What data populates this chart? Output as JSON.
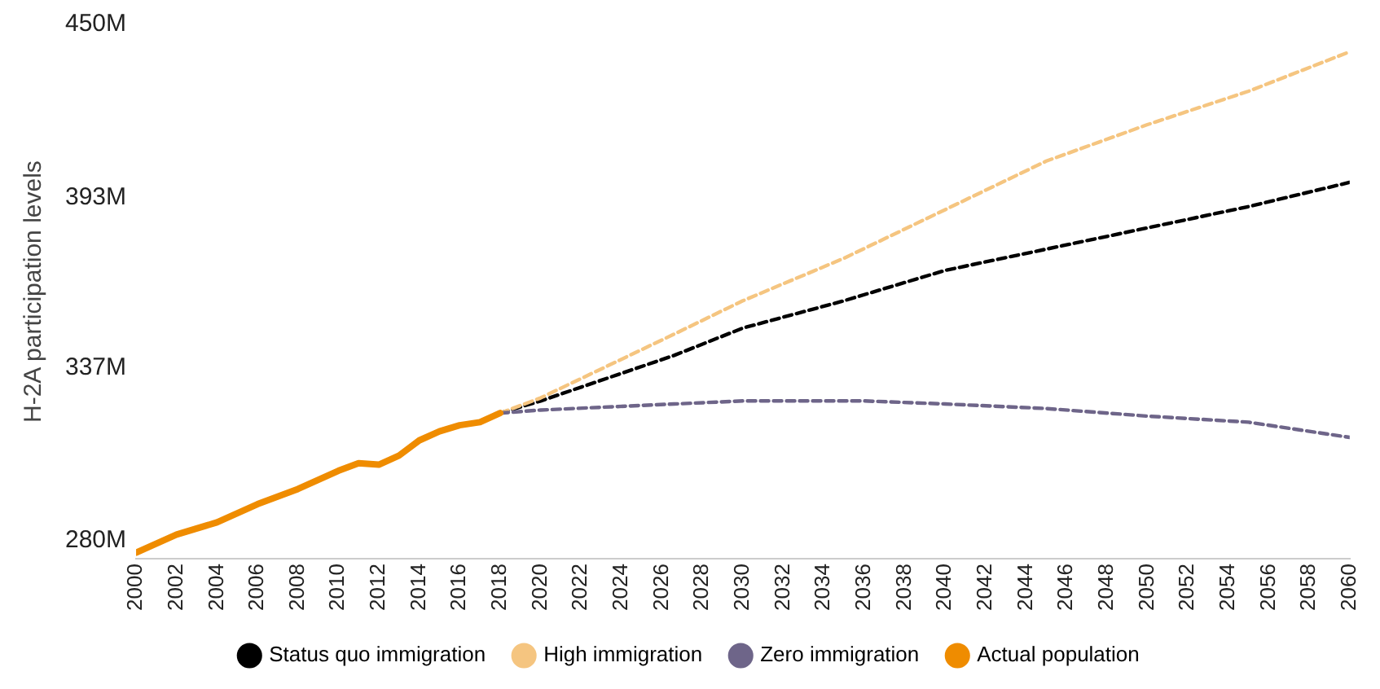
{
  "chart_data": {
    "type": "line",
    "ylabel": "H-2A participation levels",
    "xlim": [
      2000,
      2060
    ],
    "xticks": [
      2000,
      2002,
      2004,
      2006,
      2008,
      2010,
      2012,
      2014,
      2016,
      2018,
      2020,
      2022,
      2024,
      2026,
      2028,
      2030,
      2032,
      2034,
      2036,
      2038,
      2040,
      2042,
      2044,
      2046,
      2048,
      2050,
      2052,
      2054,
      2056,
      2058,
      2060
    ],
    "ylim": [
      274,
      450
    ],
    "yticks": [
      {
        "value": 280,
        "label": "280M"
      },
      {
        "value": 337,
        "label": "337M"
      },
      {
        "value": 393,
        "label": "393M"
      },
      {
        "value": 450,
        "label": "450M"
      }
    ],
    "grid": false,
    "legend": "bottom",
    "marker": "none",
    "series": [
      {
        "name": "Status quo immigration",
        "color": "#000000",
        "line_style": "dashed",
        "x": [
          2018,
          2020,
          2026.6,
          2030,
          2035,
          2040,
          2045,
          2050,
          2055,
          2060
        ],
        "values": [
          322,
          326,
          341,
          350,
          359,
          369,
          376,
          383,
          390,
          398
        ]
      },
      {
        "name": "High immigration",
        "color": "#f5c580",
        "line_style": "dashed",
        "x": [
          2018,
          2020,
          2026.6,
          2030,
          2035,
          2040,
          2045,
          2050,
          2055,
          2060
        ],
        "values": [
          322,
          327,
          348,
          359,
          373,
          389,
          405,
          417,
          428,
          441
        ]
      },
      {
        "name": "Zero immigration",
        "color": "#6e6589",
        "line_style": "dashed",
        "x": [
          2018,
          2020,
          2026.6,
          2030,
          2036,
          2040,
          2045,
          2050,
          2055,
          2060
        ],
        "values": [
          322,
          323,
          325,
          326,
          326,
          325,
          323.5,
          321,
          319,
          314
        ]
      },
      {
        "name": "Actual population",
        "color": "#ef8c00",
        "line_style": "solid",
        "x": [
          2000,
          2002,
          2004,
          2006,
          2008,
          2010,
          2011,
          2012,
          2013,
          2014,
          2015,
          2016,
          2017,
          2018
        ],
        "values": [
          276,
          282,
          286,
          292,
          297,
          303,
          305.5,
          305,
          308,
          313,
          316,
          318,
          319,
          322
        ]
      }
    ]
  }
}
